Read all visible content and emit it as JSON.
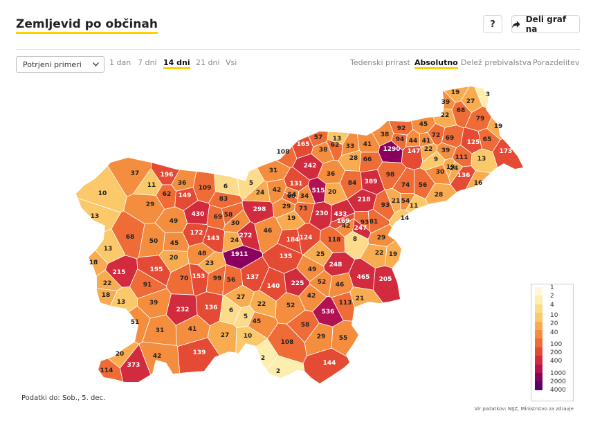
{
  "header": {
    "title": "Zemljevid po občinah",
    "help_label": "?",
    "share_label": "Deli graf na",
    "share_icon": "share-arrow-icon"
  },
  "controls": {
    "measure_select": "Potrjeni primeri",
    "periods": [
      "1 dan",
      "7 dni",
      "14 dni",
      "21 dni",
      "Vsi"
    ],
    "active_period": "14 dni",
    "modes": [
      "Tedenski prirast",
      "Absolutno",
      "Delež prebivalstva",
      "Porazdelitev"
    ],
    "active_mode": "Absolutno"
  },
  "legend": {
    "ticks": [
      "1",
      "2",
      "4",
      "10",
      "20",
      "40",
      "100",
      "200",
      "400",
      "1000",
      "2000",
      "4000"
    ],
    "colors": [
      "#fff8dc",
      "#fdeeae",
      "#fcdc8a",
      "#fbc86a",
      "#f9ab4f",
      "#f58d3e",
      "#ef6c36",
      "#e54a35",
      "#d22b3e",
      "#b31252",
      "#8a005e",
      "#5c0068"
    ]
  },
  "footer": {
    "data_date": "Podatki do: Sob., 5. dec.",
    "source": "Vir podatkov: NIJZ, Ministrstvo za zdravje"
  },
  "chart_data": {
    "type": "map",
    "title": "Zemljevid po občinah",
    "unit": "potrjeni primeri, 14 dni",
    "values": [
      19,
      3,
      39,
      27,
      68,
      22,
      79,
      19,
      38,
      92,
      45,
      72,
      69,
      94,
      44,
      41,
      65,
      125,
      173,
      57,
      13,
      62,
      33,
      41,
      108,
      165,
      1290,
      147,
      22,
      39,
      38,
      28,
      66,
      111,
      242,
      31,
      9,
      30,
      13,
      37,
      196,
      36,
      24,
      36,
      84,
      98,
      74,
      19,
      136,
      16,
      11,
      109,
      6,
      5,
      131,
      515,
      389,
      62,
      149,
      83,
      42,
      54,
      56,
      28,
      10,
      60,
      20,
      29,
      24,
      34,
      218,
      21,
      54,
      11,
      13,
      298,
      29,
      73,
      93,
      433,
      230,
      69,
      58,
      430,
      19,
      49,
      169,
      93,
      81,
      14,
      30,
      172,
      272,
      46,
      42,
      247,
      68,
      50,
      143,
      24,
      184,
      124,
      118,
      29,
      13,
      45,
      1911,
      8,
      22,
      19,
      20,
      48,
      135,
      25,
      18,
      23,
      248,
      215,
      195,
      153,
      99,
      137,
      49,
      465,
      205,
      70,
      56,
      140,
      225,
      52,
      46,
      22,
      91,
      42,
      27,
      21,
      113,
      18,
      13,
      39,
      22,
      232,
      136,
      6,
      52,
      5,
      51,
      536,
      45,
      58,
      31,
      41,
      27,
      10,
      29,
      55,
      108,
      139,
      42,
      20,
      2,
      373,
      144,
      114,
      2
    ]
  }
}
